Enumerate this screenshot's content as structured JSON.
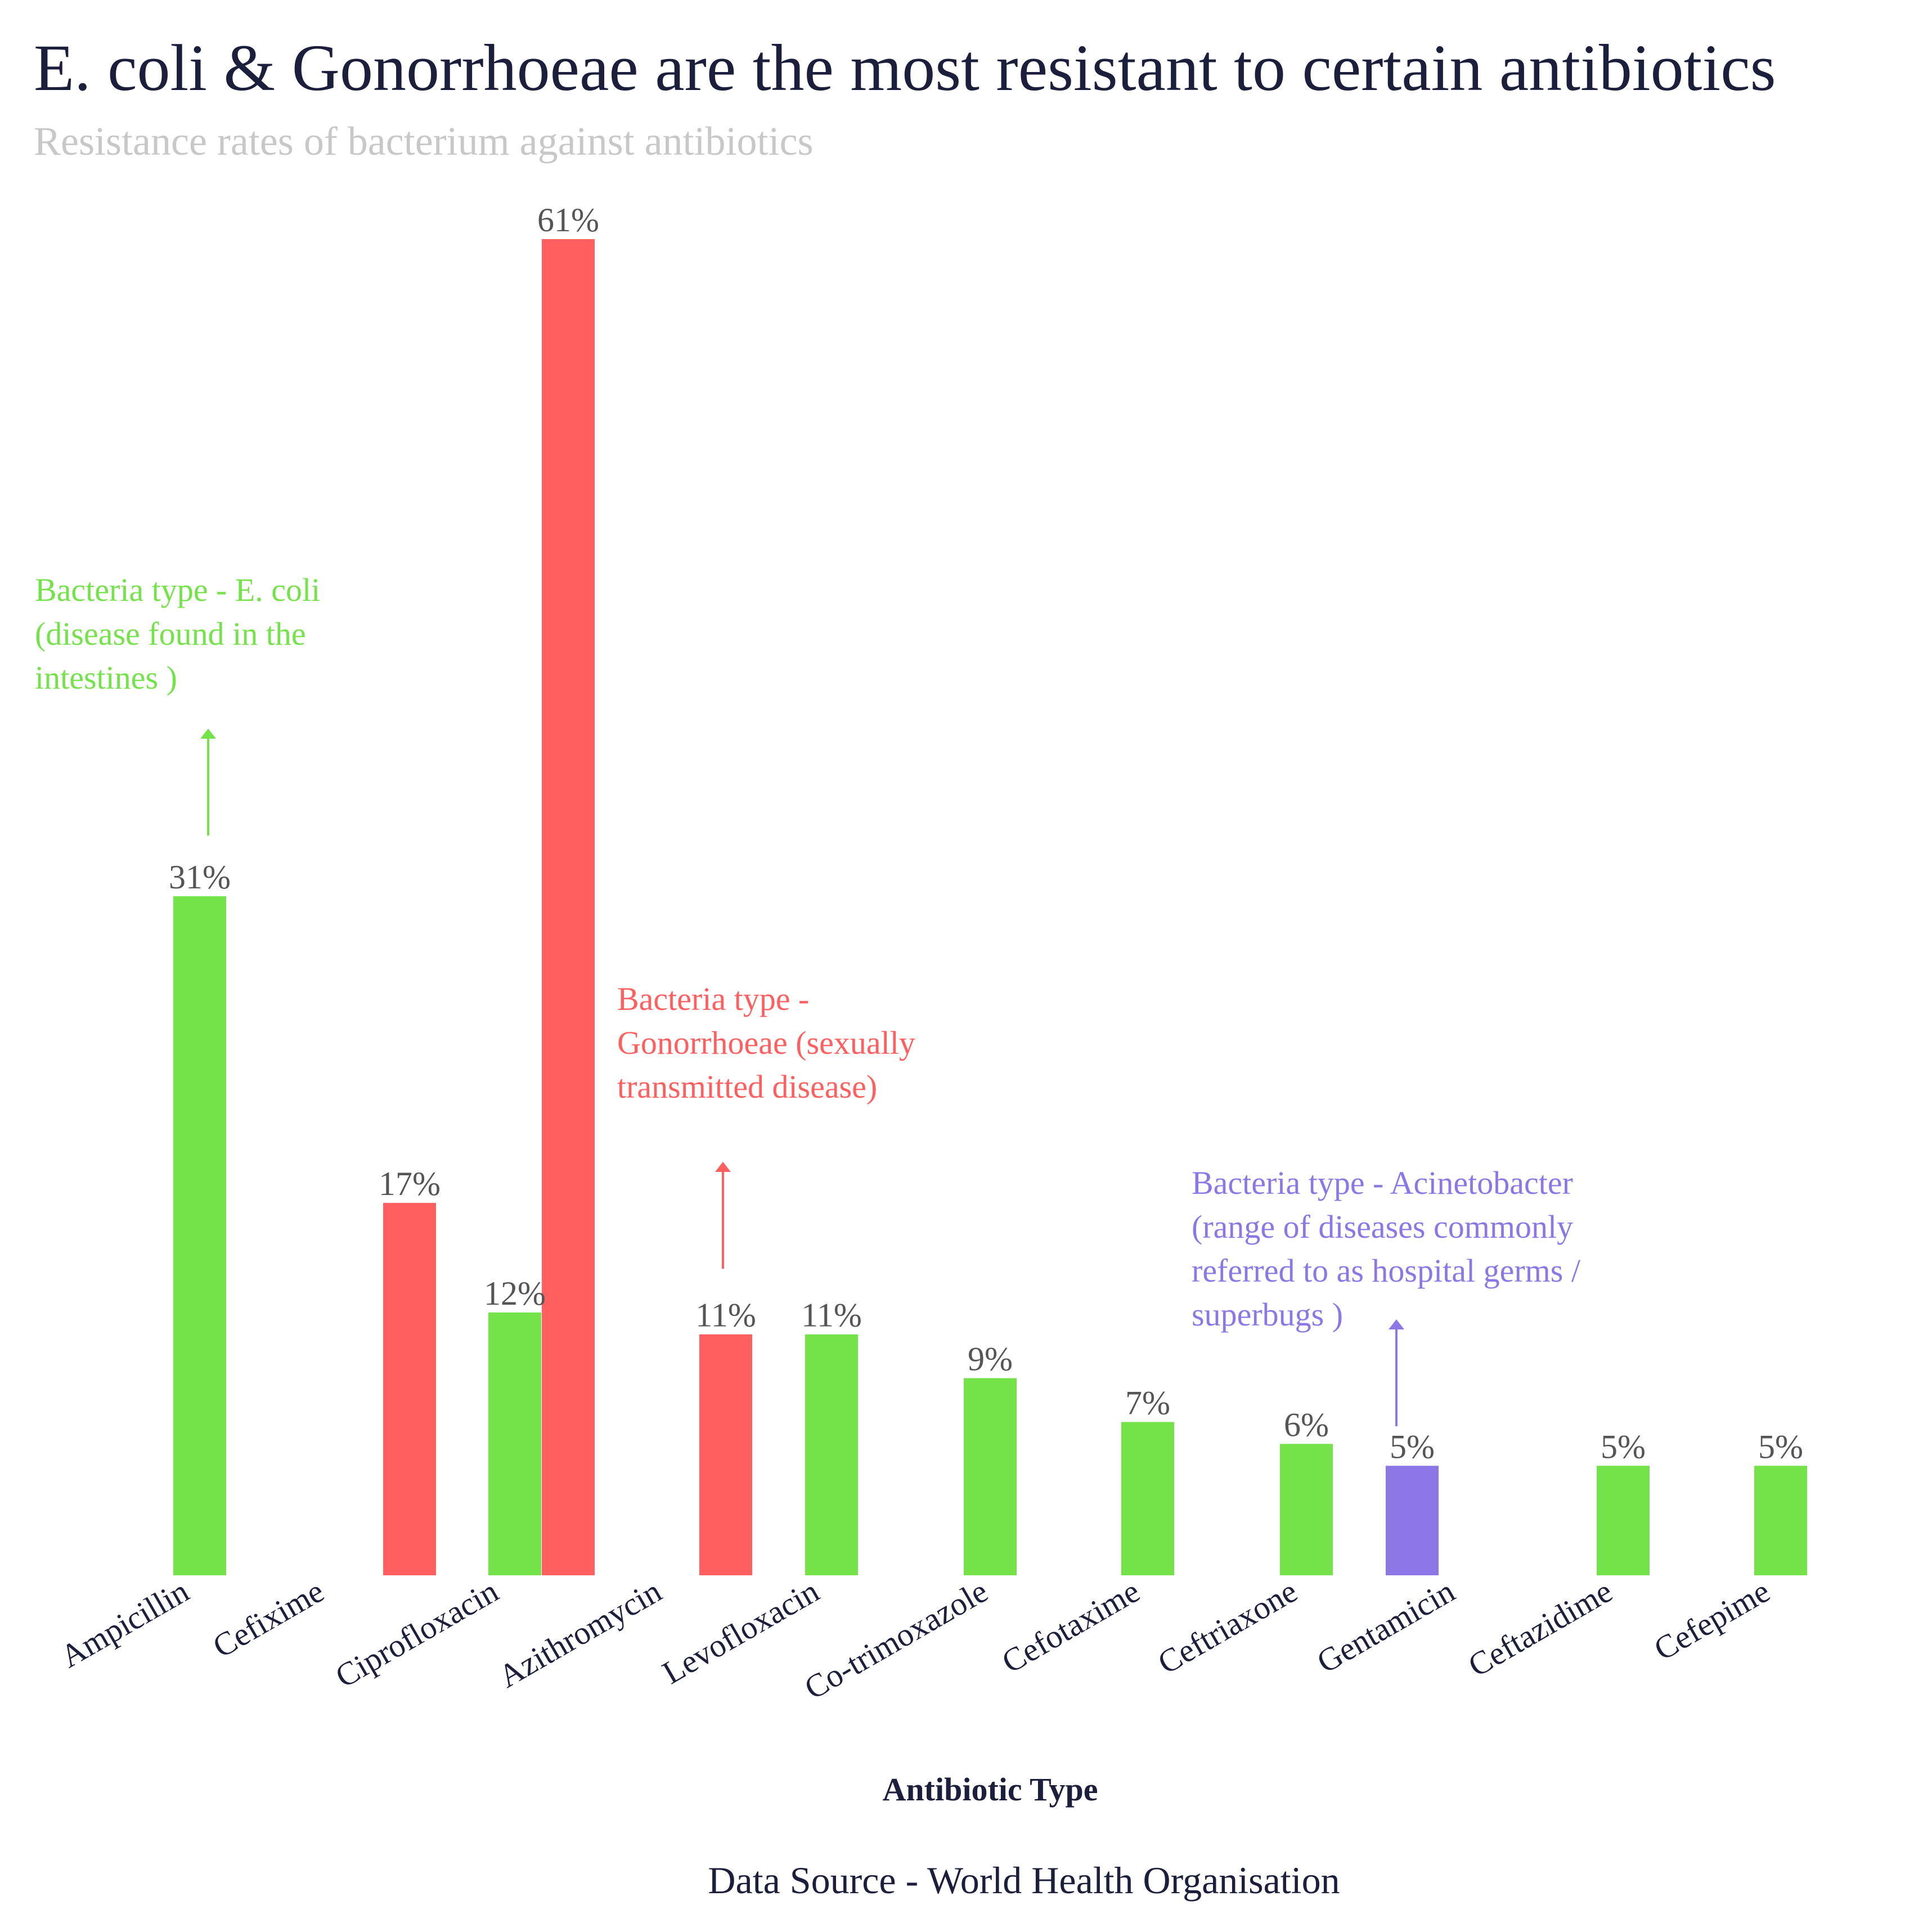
{
  "chart_data": {
    "type": "bar",
    "title": "E. coli & Gonorrhoeae are the most resistant to certain antibiotics",
    "subtitle": "Resistance rates of bacterium against antibiotics",
    "xlabel": "Antibiotic Type",
    "ylabel": "",
    "ylim": [
      0,
      61
    ],
    "grid": false,
    "legend": "none",
    "source": "Data Source - World Health Organisation",
    "colors": {
      "ecoli": "#74e34a",
      "gonorrhoeae": "#ff5f5f",
      "acinetobacter": "#8b78e6"
    },
    "categories": [
      "Ampicillin",
      "Cefixime",
      "Ciprofloxacin",
      "Azithromycin",
      "Levofloxacin",
      "Co-trimoxazole",
      "Cefotaxime",
      "Ceftriaxone",
      "Gentamicin",
      "Ceftazidime",
      "Cefepime"
    ],
    "bars": [
      {
        "category": "Ampicillin",
        "value": 31,
        "label": "31%",
        "group": "ecoli"
      },
      {
        "category": "Cefixime",
        "value": 17,
        "label": "17%",
        "group": "gonorrhoeae"
      },
      {
        "category": "Ciprofloxacin",
        "value": 12,
        "label": "12%",
        "group": "ecoli"
      },
      {
        "category": "Ciprofloxacin",
        "value": 61,
        "label": "61%",
        "group": "gonorrhoeae"
      },
      {
        "category": "Azithromycin",
        "value": 11,
        "label": "11%",
        "group": "gonorrhoeae"
      },
      {
        "category": "Levofloxacin",
        "value": 11,
        "label": "11%",
        "group": "ecoli"
      },
      {
        "category": "Co-trimoxazole",
        "value": 9,
        "label": "9%",
        "group": "ecoli"
      },
      {
        "category": "Cefotaxime",
        "value": 7,
        "label": "7%",
        "group": "ecoli"
      },
      {
        "category": "Ceftriaxone",
        "value": 6,
        "label": "6%",
        "group": "ecoli"
      },
      {
        "category": "Gentamicin",
        "value": 5,
        "label": "5%",
        "group": "acinetobacter"
      },
      {
        "category": "Ceftazidime",
        "value": 5,
        "label": "5%",
        "group": "ecoli"
      },
      {
        "category": "Cefepime",
        "value": 5,
        "label": "5%",
        "group": "ecoli"
      }
    ],
    "annotations": [
      {
        "group": "ecoli",
        "lines": [
          "Bacteria type - E. coli",
          "(disease found in the",
          "intestines )"
        ]
      },
      {
        "group": "gonorrhoeae",
        "lines": [
          "Bacteria type -",
          "Gonorrhoeae (sexually",
          "transmitted disease)"
        ]
      },
      {
        "group": "acinetobacter",
        "lines": [
          "Bacteria type - Acinetobacter",
          "(range of diseases commonly",
          "referred to as hospital germs /",
          "superbugs )"
        ]
      }
    ]
  }
}
